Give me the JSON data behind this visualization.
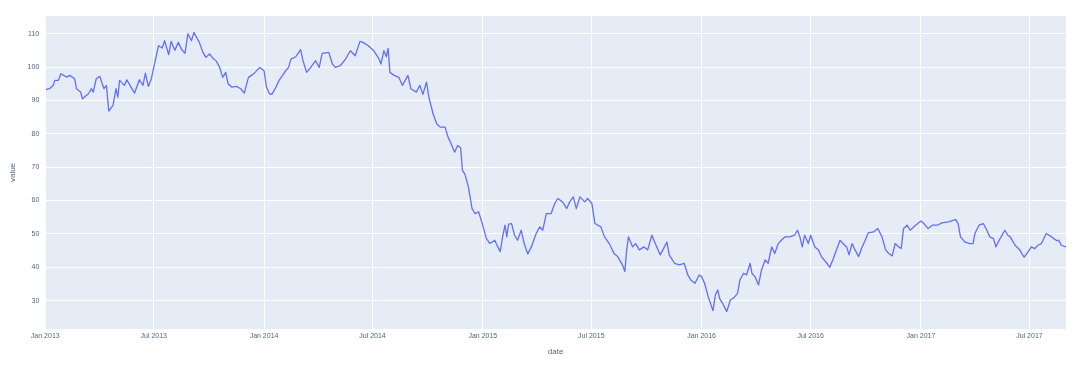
{
  "chart_data": {
    "type": "line",
    "xlabel": "date",
    "ylabel": "value",
    "grid": true,
    "legend": false,
    "marker": "none",
    "line_style": "solid",
    "xlim": [
      "2013-01-01",
      "2017-08-31"
    ],
    "ylim": [
      21.5,
      115.3
    ],
    "xticks": [
      {
        "value": "2013-01-01",
        "label": "Jan 2013"
      },
      {
        "value": "2013-07-01",
        "label": "Jul 2013"
      },
      {
        "value": "2014-01-01",
        "label": "Jan 2014"
      },
      {
        "value": "2014-07-01",
        "label": "Jul 2014"
      },
      {
        "value": "2015-01-01",
        "label": "Jan 2015"
      },
      {
        "value": "2015-07-01",
        "label": "Jul 2015"
      },
      {
        "value": "2016-01-01",
        "label": "Jan 2016"
      },
      {
        "value": "2016-07-01",
        "label": "Jul 2016"
      },
      {
        "value": "2017-01-01",
        "label": "Jan 2017"
      },
      {
        "value": "2017-07-01",
        "label": "Jul 2017"
      }
    ],
    "yticks": [
      30,
      40,
      50,
      60,
      70,
      80,
      90,
      100,
      110
    ],
    "series": [
      {
        "color": "#636efa",
        "x": [
          "2013-01-02",
          "2013-01-08",
          "2013-01-14",
          "2013-01-17",
          "2013-01-23",
          "2013-01-27",
          "2013-02-06",
          "2013-02-11",
          "2013-02-19",
          "2013-02-22",
          "2013-03-01",
          "2013-03-04",
          "2013-03-14",
          "2013-03-19",
          "2013-03-22",
          "2013-03-27",
          "2013-04-02",
          "2013-04-06",
          "2013-04-09",
          "2013-04-13",
          "2013-04-17",
          "2013-04-24",
          "2013-04-29",
          "2013-05-02",
          "2013-05-05",
          "2013-05-13",
          "2013-05-17",
          "2013-05-24",
          "2013-05-30",
          "2013-06-07",
          "2013-06-13",
          "2013-06-17",
          "2013-06-22",
          "2013-06-27",
          "2013-07-04",
          "2013-07-09",
          "2013-07-15",
          "2013-07-19",
          "2013-07-26",
          "2013-07-30",
          "2013-08-05",
          "2013-08-11",
          "2013-08-16",
          "2013-08-22",
          "2013-08-27",
          "2013-09-02",
          "2013-09-06",
          "2013-09-11",
          "2013-09-15",
          "2013-09-21",
          "2013-09-26",
          "2013-10-02",
          "2013-10-09",
          "2013-10-13",
          "2013-10-19",
          "2013-10-24",
          "2013-10-29",
          "2013-11-02",
          "2013-11-08",
          "2013-11-16",
          "2013-11-23",
          "2013-11-29",
          "2013-12-06",
          "2013-12-11",
          "2013-12-17",
          "2013-12-25",
          "2014-01-01",
          "2014-01-05",
          "2014-01-10",
          "2014-01-14",
          "2014-01-21",
          "2014-01-26",
          "2014-02-01",
          "2014-02-06",
          "2014-02-11",
          "2014-02-15",
          "2014-02-23",
          "2014-03-03",
          "2014-03-07",
          "2014-03-13",
          "2014-03-20",
          "2014-03-28",
          "2014-04-03",
          "2014-04-08",
          "2014-04-19",
          "2014-04-25",
          "2014-04-30",
          "2014-05-08",
          "2014-05-17",
          "2014-05-25",
          "2014-06-02",
          "2014-06-10",
          "2014-06-15",
          "2014-06-24",
          "2014-07-03",
          "2014-07-12",
          "2014-07-15",
          "2014-07-20",
          "2014-07-24",
          "2014-07-27",
          "2014-07-30",
          "2014-08-06",
          "2014-08-14",
          "2014-08-20",
          "2014-08-29",
          "2014-09-03",
          "2014-09-12",
          "2014-09-18",
          "2014-09-23",
          "2014-09-29",
          "2014-10-03",
          "2014-10-10",
          "2014-10-16",
          "2014-10-22",
          "2014-10-30",
          "2014-11-04",
          "2014-11-08",
          "2014-11-15",
          "2014-11-20",
          "2014-11-25",
          "2014-11-28",
          "2014-12-02",
          "2014-12-08",
          "2014-12-14",
          "2014-12-19",
          "2014-12-25",
          "2014-12-31",
          "2015-01-07",
          "2015-01-13",
          "2015-01-21",
          "2015-01-26",
          "2015-01-30",
          "2015-02-03",
          "2015-02-07",
          "2015-02-10",
          "2015-02-13",
          "2015-02-18",
          "2015-02-23",
          "2015-02-28",
          "2015-03-06",
          "2015-03-11",
          "2015-03-17",
          "2015-03-23",
          "2015-03-28",
          "2015-03-31",
          "2015-04-06",
          "2015-04-11",
          "2015-04-17",
          "2015-04-25",
          "2015-05-01",
          "2015-05-06",
          "2015-05-14",
          "2015-05-21",
          "2015-05-26",
          "2015-06-01",
          "2015-06-06",
          "2015-06-12",
          "2015-06-20",
          "2015-06-25",
          "2015-07-02",
          "2015-07-07",
          "2015-07-12",
          "2015-07-17",
          "2015-07-23",
          "2015-07-31",
          "2015-08-08",
          "2015-08-14",
          "2015-08-22",
          "2015-08-26",
          "2015-08-29",
          "2015-09-01",
          "2015-09-08",
          "2015-09-13",
          "2015-09-19",
          "2015-09-27",
          "2015-10-03",
          "2015-10-10",
          "2015-10-17",
          "2015-10-24",
          "2015-10-31",
          "2015-11-04",
          "2015-11-08",
          "2015-11-17",
          "2015-11-25",
          "2015-12-03",
          "2015-12-09",
          "2015-12-14",
          "2015-12-21",
          "2015-12-28",
          "2016-01-01",
          "2016-01-06",
          "2016-01-12",
          "2016-01-20",
          "2016-01-24",
          "2016-01-28",
          "2016-01-31",
          "2016-02-05",
          "2016-02-12",
          "2016-02-18",
          "2016-02-23",
          "2016-03-01",
          "2016-03-05",
          "2016-03-11",
          "2016-03-16",
          "2016-03-22",
          "2016-03-25",
          "2016-03-30",
          "2016-04-05",
          "2016-04-10",
          "2016-04-16",
          "2016-04-21",
          "2016-04-27",
          "2016-05-02",
          "2016-05-08",
          "2016-05-13",
          "2016-05-19",
          "2016-05-27",
          "2016-06-04",
          "2016-06-09",
          "2016-06-13",
          "2016-06-17",
          "2016-06-21",
          "2016-06-27",
          "2016-07-01",
          "2016-07-08",
          "2016-07-14",
          "2016-07-19",
          "2016-07-28",
          "2016-08-02",
          "2016-08-08",
          "2016-08-13",
          "2016-08-19",
          "2016-08-24",
          "2016-08-30",
          "2016-09-03",
          "2016-09-08",
          "2016-09-13",
          "2016-09-19",
          "2016-09-24",
          "2016-09-30",
          "2016-10-05",
          "2016-10-14",
          "2016-10-21",
          "2016-10-28",
          "2016-11-03",
          "2016-11-08",
          "2016-11-14",
          "2016-11-19",
          "2016-11-25",
          "2016-11-29",
          "2016-12-03",
          "2016-12-09",
          "2016-12-14",
          "2016-12-23",
          "2017-01-01",
          "2017-01-06",
          "2017-01-13",
          "2017-01-20",
          "2017-01-28",
          "2017-02-05",
          "2017-02-16",
          "2017-02-21",
          "2017-02-28",
          "2017-03-04",
          "2017-03-08",
          "2017-03-15",
          "2017-03-23",
          "2017-03-29",
          "2017-04-01",
          "2017-04-08",
          "2017-04-15",
          "2017-04-21",
          "2017-04-26",
          "2017-05-02",
          "2017-05-06",
          "2017-05-13",
          "2017-05-21",
          "2017-05-26",
          "2017-05-30",
          "2017-06-07",
          "2017-06-15",
          "2017-06-22",
          "2017-06-29",
          "2017-07-04",
          "2017-07-10",
          "2017-07-15",
          "2017-07-21",
          "2017-07-29",
          "2017-08-07",
          "2017-08-15",
          "2017-08-19",
          "2017-08-23",
          "2017-08-31"
        ],
        "values": [
          93.2,
          93.5,
          94.5,
          96,
          96,
          98,
          97,
          97.5,
          96.5,
          93.5,
          92.5,
          90.5,
          92,
          93.5,
          92.5,
          96.5,
          97.2,
          95,
          93.5,
          94.5,
          86.8,
          88.5,
          93.5,
          91,
          96,
          94.5,
          96.2,
          94,
          92.2,
          96.2,
          94.5,
          98.2,
          94.2,
          96.5,
          102.4,
          106.4,
          105.7,
          107.9,
          103.7,
          107.7,
          105,
          107.4,
          105.4,
          104.1,
          110,
          107.9,
          110.4,
          108.7,
          107.4,
          104.4,
          102.9,
          103.9,
          102.4,
          101.9,
          99.9,
          96.9,
          98.4,
          95,
          94,
          94.2,
          93.5,
          92.2,
          96.9,
          97.5,
          98.4,
          99.9,
          98.9,
          94,
          92,
          91.8,
          94,
          96,
          97.5,
          98.9,
          99.9,
          102.4,
          103.1,
          105.2,
          101.9,
          98.4,
          99.9,
          101.9,
          99.9,
          104.1,
          104.4,
          100.9,
          99.9,
          100.4,
          102.4,
          104.9,
          103.4,
          107.7,
          107.4,
          106.4,
          104.9,
          102.4,
          100.9,
          104.9,
          103.1,
          105.6,
          98.4,
          97.5,
          96.9,
          94.5,
          97.5,
          93.5,
          92.5,
          94.5,
          91.8,
          95.5,
          91,
          86,
          83,
          82,
          82,
          79,
          77.5,
          74.5,
          76.5,
          75.8,
          69,
          68,
          64,
          57.6,
          56.1,
          56.6,
          53.1,
          48.6,
          47.1,
          48.1,
          46.1,
          44.7,
          49.1,
          52.6,
          49.1,
          52.9,
          53.1,
          49.6,
          48.1,
          51.1,
          47.1,
          44,
          46.1,
          48.6,
          50.1,
          52.1,
          51.1,
          56.1,
          56.1,
          59.1,
          60.6,
          59.6,
          57.6,
          59.6,
          61.1,
          57.6,
          61.1,
          59.6,
          60.6,
          59.1,
          53.1,
          52.6,
          52.1,
          49.1,
          47.1,
          44.1,
          43.2,
          40.7,
          38.7,
          45.2,
          49.1,
          46.1,
          47.1,
          45.2,
          46.1,
          45.2,
          49.6,
          46.6,
          43.7,
          46.1,
          47.6,
          43.7,
          41.2,
          40.7,
          41.2,
          37.7,
          36.2,
          35.2,
          37.7,
          37.2,
          35.2,
          31.2,
          27,
          31.7,
          33.2,
          30.7,
          29.2,
          26.7,
          30.2,
          30.7,
          32.2,
          36.2,
          38.2,
          37.7,
          41.2,
          38.2,
          37.2,
          34.7,
          39.2,
          42.2,
          41.2,
          46.1,
          44.1,
          47.1,
          48.1,
          49.1,
          49.1,
          49.6,
          51.1,
          49.1,
          46.1,
          49.6,
          47.1,
          49.6,
          46.1,
          45.2,
          43.2,
          41.2,
          40,
          42.7,
          45.2,
          48.1,
          47.1,
          46.1,
          43.7,
          47.1,
          45.2,
          43.2,
          45.7,
          48.1,
          50.3,
          50.6,
          51.6,
          49.1,
          45.2,
          44.2,
          43.4,
          47.1,
          46.1,
          45.6,
          51.6,
          52.6,
          51.1,
          52.6,
          53.9,
          53.1,
          51.6,
          52.6,
          52.6,
          53.3,
          53.6,
          53.9,
          54.3,
          53.1,
          49.1,
          47.6,
          47.1,
          47.1,
          50.1,
          52.6,
          53.1,
          51.1,
          49.1,
          48.6,
          46.1,
          48.6,
          51.1,
          49.6,
          49.1,
          46.6,
          45.2,
          43,
          44.7,
          46.1,
          45.6,
          46.6,
          47.1,
          50.1,
          49.1,
          48,
          48.1,
          46.6,
          46.1
        ]
      }
    ]
  }
}
